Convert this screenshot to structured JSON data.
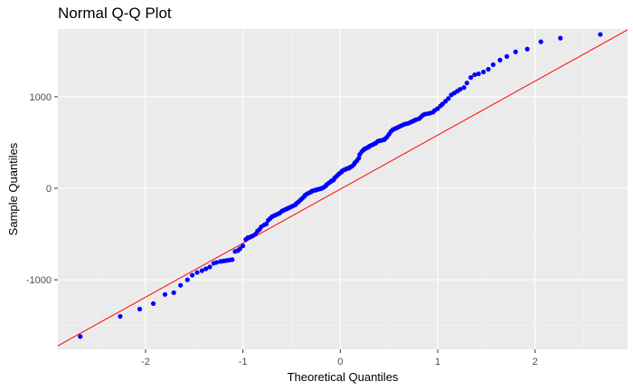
{
  "chart_data": {
    "type": "scatter",
    "title": "Normal Q-Q Plot",
    "xlabel": "Theoretical Quantiles",
    "ylabel": "Sample Quantiles",
    "xlim": [
      -2.9,
      2.95
    ],
    "ylim": [
      -1760,
      1740
    ],
    "x_ticks": [
      -2,
      -1,
      0,
      1,
      2
    ],
    "x_tick_labels": [
      "-2",
      "-1",
      "0",
      "1",
      "2"
    ],
    "y_ticks": [
      -1000,
      0,
      1000
    ],
    "y_tick_labels": [
      "-1000",
      "0",
      "1000"
    ],
    "grid": true,
    "panel_background": "#ebebeb",
    "point_color": "#0000ff",
    "line_color": "#ff0000",
    "reference_line": {
      "intercept": -10,
      "slope": 590
    },
    "points": {
      "x": [
        -2.67,
        -2.26,
        -2.06,
        -1.92,
        -1.8,
        -1.71,
        -1.64,
        -1.57,
        -1.52,
        -1.47,
        -1.42,
        -1.38,
        -1.34,
        -1.3,
        -1.27,
        -1.23,
        -1.2,
        -1.17,
        -1.14,
        -1.11,
        -1.08,
        -1.05,
        -1.03,
        -1.0,
        -0.97,
        -0.95,
        -0.92,
        -0.9,
        -0.87,
        -0.85,
        -0.83,
        -0.81,
        -0.78,
        -0.76,
        -0.74,
        -0.72,
        -0.7,
        -0.68,
        -0.66,
        -0.64,
        -0.62,
        -0.6,
        -0.58,
        -0.56,
        -0.54,
        -0.52,
        -0.5,
        -0.48,
        -0.46,
        -0.45,
        -0.43,
        -0.41,
        -0.39,
        -0.37,
        -0.36,
        -0.34,
        -0.32,
        -0.3,
        -0.29,
        -0.27,
        -0.25,
        -0.24,
        -0.22,
        -0.2,
        -0.19,
        -0.17,
        -0.15,
        -0.14,
        -0.12,
        -0.1,
        -0.09,
        -0.07,
        -0.06,
        -0.04,
        -0.02,
        -0.01,
        0.01,
        0.02,
        0.04,
        0.06,
        0.07,
        0.09,
        0.1,
        0.12,
        0.14,
        0.15,
        0.17,
        0.19,
        0.2,
        0.22,
        0.24,
        0.25,
        0.27,
        0.29,
        0.3,
        0.32,
        0.34,
        0.36,
        0.37,
        0.39,
        0.41,
        0.43,
        0.45,
        0.46,
        0.48,
        0.5,
        0.52,
        0.54,
        0.56,
        0.58,
        0.6,
        0.62,
        0.64,
        0.66,
        0.68,
        0.7,
        0.72,
        0.74,
        0.76,
        0.78,
        0.81,
        0.83,
        0.85,
        0.87,
        0.9,
        0.92,
        0.95,
        0.97,
        1.0,
        1.03,
        1.05,
        1.08,
        1.11,
        1.14,
        1.17,
        1.2,
        1.23,
        1.27,
        1.3,
        1.34,
        1.38,
        1.42,
        1.47,
        1.52,
        1.57,
        1.64,
        1.71,
        1.8,
        1.92,
        2.06,
        2.26,
        2.67
      ],
      "y": [
        -1620,
        -1400,
        -1320,
        -1260,
        -1160,
        -1140,
        -1060,
        -1000,
        -950,
        -920,
        -900,
        -880,
        -860,
        -820,
        -810,
        -800,
        -795,
        -790,
        -785,
        -780,
        -690,
        -680,
        -660,
        -630,
        -560,
        -540,
        -530,
        -520,
        -500,
        -470,
        -450,
        -420,
        -400,
        -390,
        -350,
        -330,
        -310,
        -300,
        -290,
        -280,
        -270,
        -250,
        -240,
        -230,
        -220,
        -210,
        -200,
        -190,
        -180,
        -165,
        -150,
        -130,
        -110,
        -90,
        -75,
        -60,
        -50,
        -40,
        -30,
        -25,
        -20,
        -15,
        -10,
        -5,
        0,
        10,
        25,
        40,
        55,
        70,
        80,
        90,
        110,
        130,
        150,
        160,
        175,
        190,
        200,
        210,
        215,
        220,
        230,
        240,
        260,
        280,
        300,
        330,
        370,
        400,
        420,
        430,
        440,
        450,
        460,
        470,
        480,
        490,
        500,
        515,
        520,
        525,
        530,
        540,
        560,
        590,
        620,
        640,
        650,
        660,
        670,
        680,
        690,
        700,
        705,
        710,
        720,
        730,
        740,
        750,
        760,
        780,
        800,
        810,
        815,
        820,
        830,
        850,
        870,
        900,
        920,
        950,
        980,
        1020,
        1040,
        1060,
        1080,
        1100,
        1150,
        1210,
        1240,
        1250,
        1270,
        1300,
        1350,
        1400,
        1440,
        1490,
        1520,
        1600,
        1640,
        1680
      ],
      "values_note": ""
    }
  }
}
